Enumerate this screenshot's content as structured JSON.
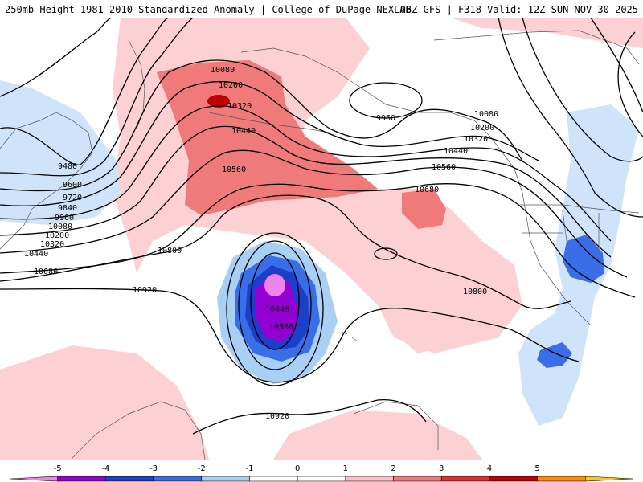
{
  "header": {
    "title_left": "250mb Height 1981-2010 Standardized Anomaly | College of DuPage NEXLAB",
    "title_right": "06Z GFS | F318 Valid: 12Z SUN NOV 30 2025"
  },
  "contour_labels": {
    "west": [
      "9480",
      "9600",
      "9720",
      "9840",
      "9960",
      "10080",
      "10200",
      "10320",
      "10440",
      "10680"
    ],
    "north": [
      "10080",
      "10200",
      "10320",
      "10440",
      "10560"
    ],
    "alaska": [
      "9960"
    ],
    "east": [
      "10080",
      "10200",
      "10320",
      "10440",
      "10560",
      "10680"
    ],
    "center": [
      "10800",
      "10920",
      "10440",
      "10560",
      "10800",
      "10920"
    ]
  },
  "colorbar": {
    "ticks": [
      "-5",
      "-4",
      "-3",
      "-2",
      "-1",
      "0",
      "1",
      "2",
      "3",
      "4",
      "5"
    ],
    "colors": [
      "#ee82ee",
      "#9400d3",
      "#1c3ec8",
      "#3a6ee8",
      "#a9cff5",
      "#ffffff",
      "#ffffff",
      "#fdc0c6",
      "#f07a7a",
      "#e03030",
      "#c00000",
      "#ff8c00",
      "#ffcc00"
    ]
  }
}
